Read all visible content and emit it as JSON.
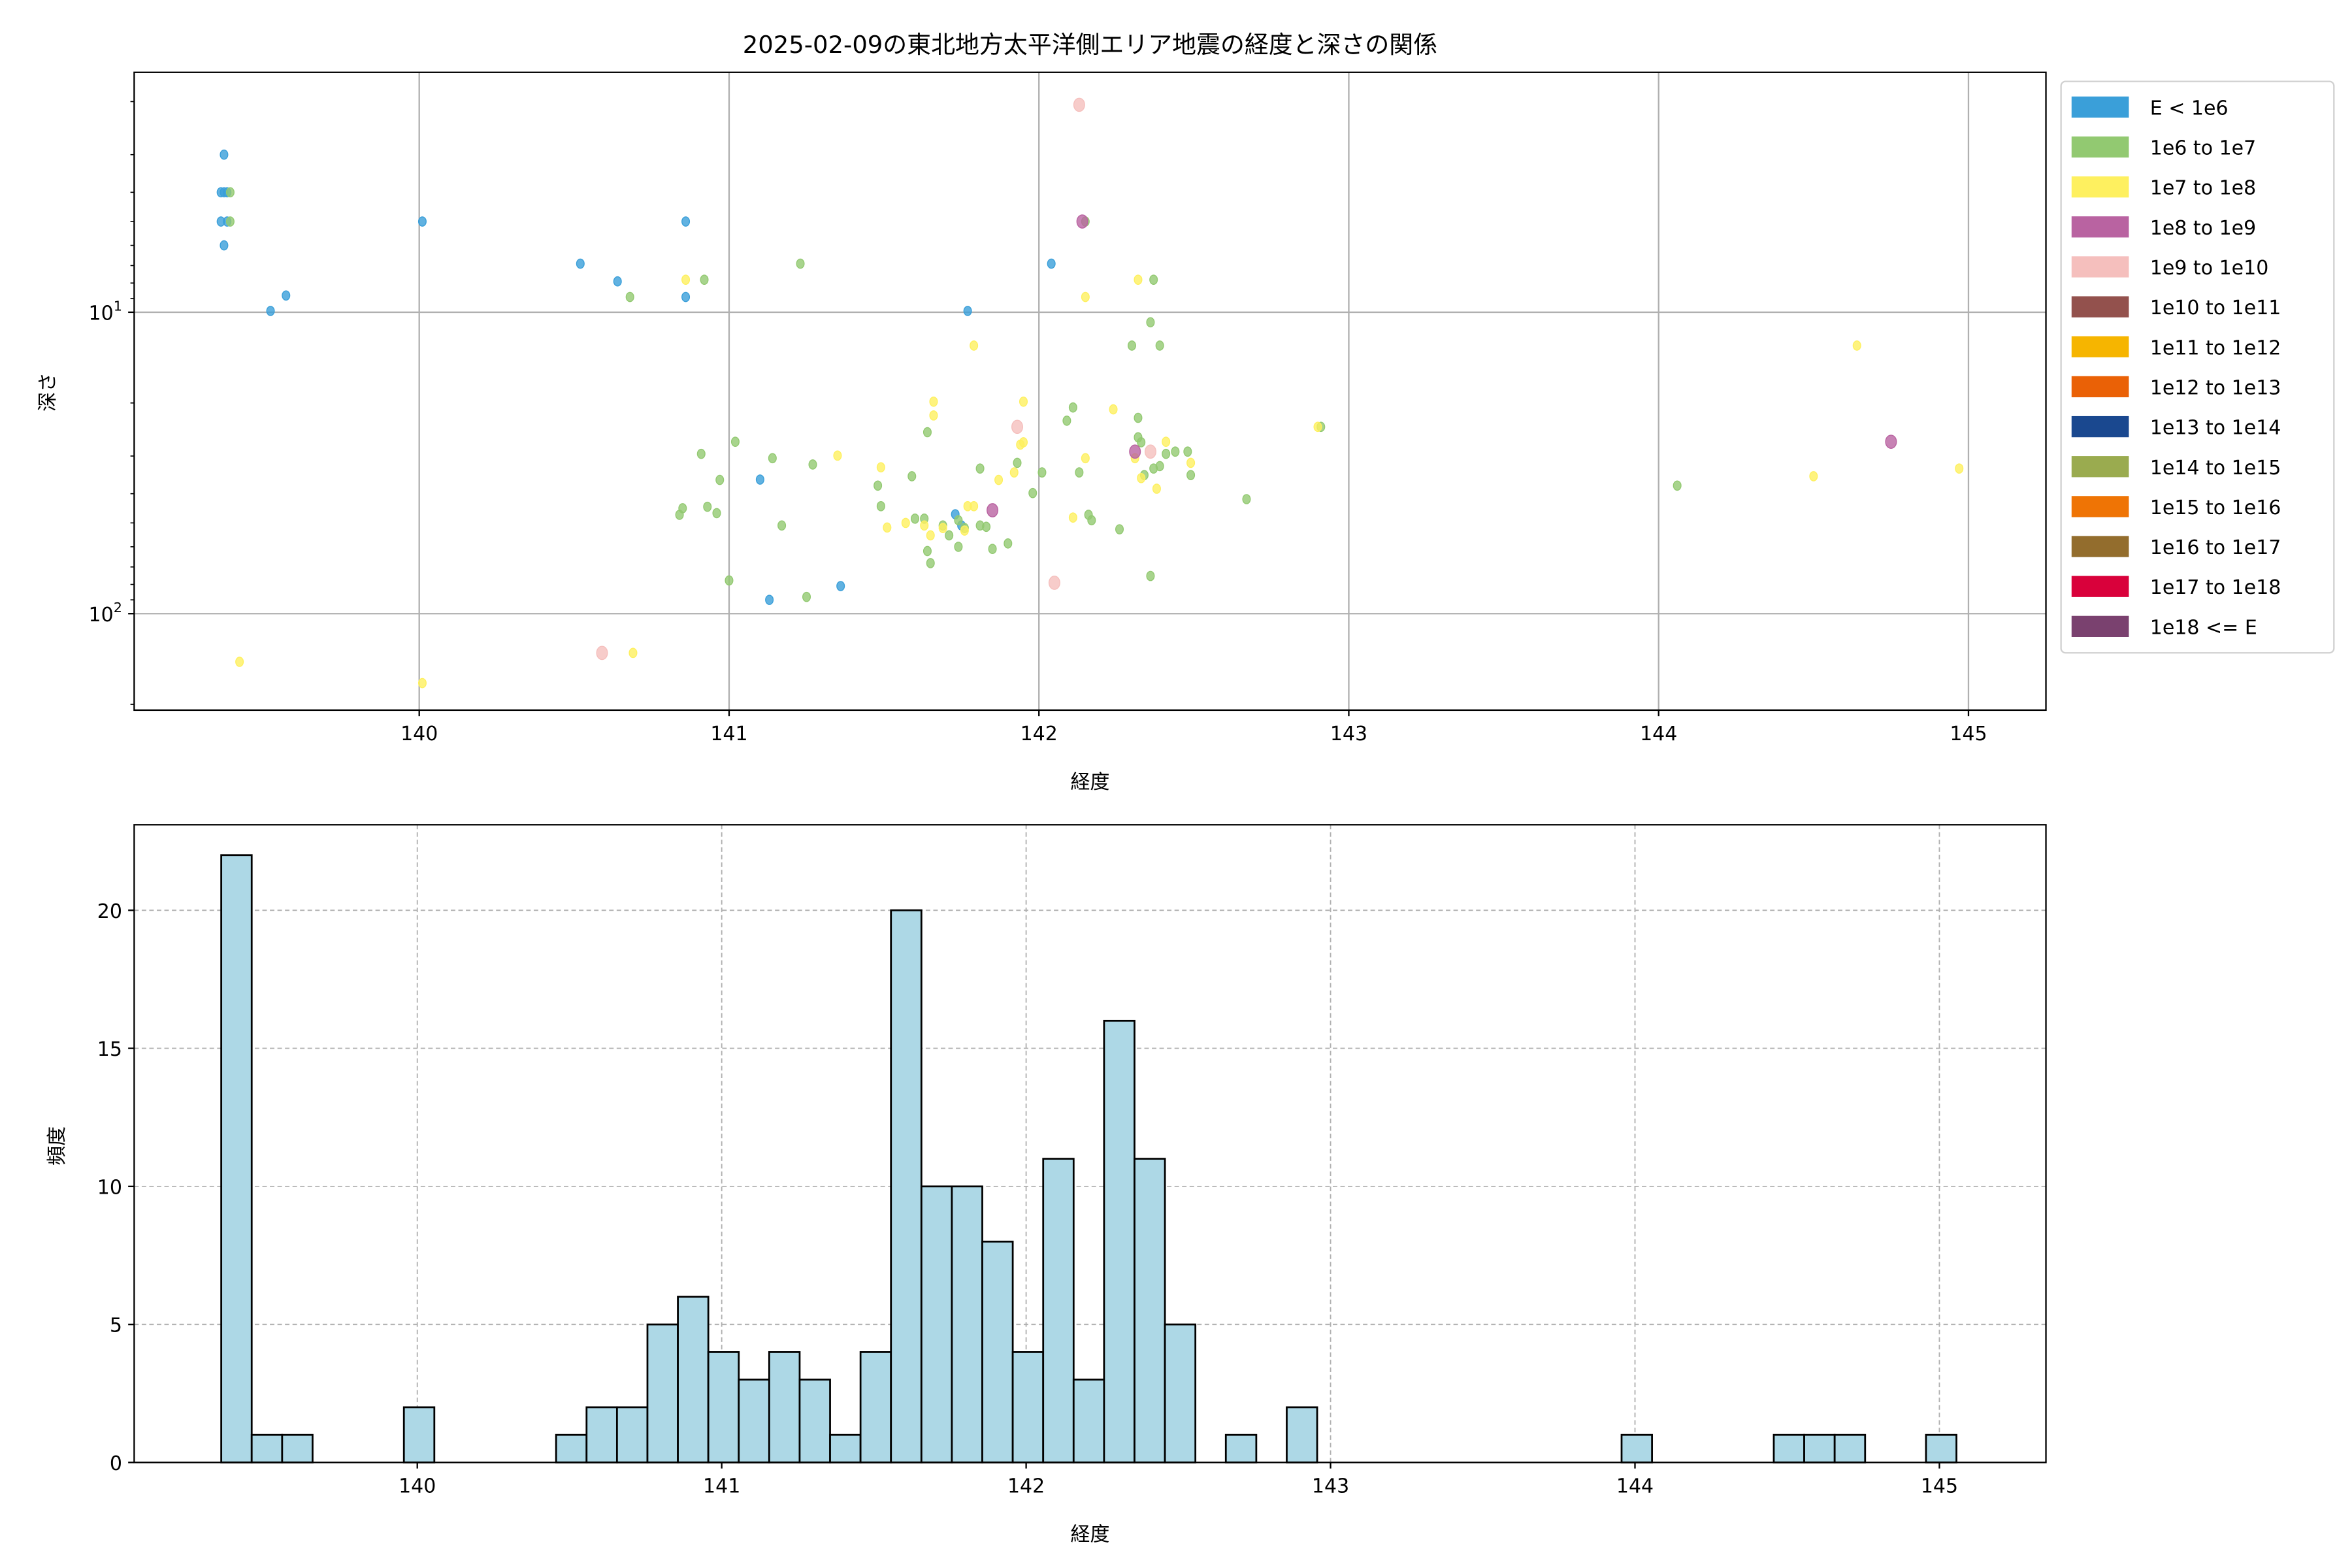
{
  "chart_data": [
    {
      "type": "scatter",
      "title": "2025-02-09の東北地方太平洋側エリア地震の経度と深さの関係",
      "xlabel": "経度",
      "ylabel": "深さ",
      "xlim": [
        139.08,
        145.25
      ],
      "ylim": [
        209,
        1.6
      ],
      "yscale": "log",
      "y_inverted": true,
      "xticks": [
        "140",
        "141",
        "142",
        "143",
        "144",
        "145"
      ],
      "yticks": [
        {
          "value": 10,
          "base": "10",
          "exp": "1"
        },
        {
          "value": 100,
          "base": "10",
          "exp": "2"
        }
      ],
      "grid": true,
      "legend_position": "outside-right",
      "legend": [
        {
          "label": "E < 1e6",
          "color": "#3a9fd9"
        },
        {
          "label": "1e6 to 1e7",
          "color": "#92c971"
        },
        {
          "label": "1e7 to 1e8",
          "color": "#fef05f"
        },
        {
          "label": "1e8 to 1e9",
          "color": "#b963a1"
        },
        {
          "label": "1e9 to 1e10",
          "color": "#f5bfbd"
        },
        {
          "label": "1e10 to 1e11",
          "color": "#93514d"
        },
        {
          "label": "1e11 to 1e12",
          "color": "#f6b500"
        },
        {
          "label": "1e12 to 1e13",
          "color": "#ea6106"
        },
        {
          "label": "1e13 to 1e14",
          "color": "#1a488f"
        },
        {
          "label": "1e14 to 1e15",
          "color": "#9aab4f"
        },
        {
          "label": "1e15 to 1e16",
          "color": "#ef7405"
        },
        {
          "label": "1e16 to 1e17",
          "color": "#936d2d"
        },
        {
          "label": "1e17 to 1e18",
          "color": "#d9013b"
        },
        {
          "label": "1e18 <= E",
          "color": "#7a416f"
        }
      ],
      "points": [
        [
          139.37,
          3.0,
          0
        ],
        [
          139.36,
          4.0,
          0
        ],
        [
          139.37,
          4.0,
          0
        ],
        [
          139.38,
          4.0,
          0
        ],
        [
          139.36,
          5.0,
          0
        ],
        [
          139.38,
          5.0,
          0
        ],
        [
          139.37,
          6.0,
          0
        ],
        [
          139.52,
          9.9,
          0
        ],
        [
          139.57,
          8.8,
          0
        ],
        [
          140.01,
          5.0,
          0
        ],
        [
          140.52,
          6.9,
          0
        ],
        [
          140.64,
          7.9,
          0
        ],
        [
          140.86,
          8.9,
          0
        ],
        [
          140.86,
          5.0,
          0
        ],
        [
          142.04,
          6.9,
          0
        ],
        [
          141.77,
          9.9,
          0
        ],
        [
          141.1,
          35.9,
          0
        ],
        [
          141.73,
          46.8,
          0
        ],
        [
          141.75,
          51,
          0
        ],
        [
          141.13,
          90,
          0
        ],
        [
          141.36,
          81,
          0
        ],
        [
          139.39,
          4.0,
          1
        ],
        [
          139.39,
          5.0,
          1
        ],
        [
          140.68,
          8.9,
          1
        ],
        [
          140.92,
          7.8,
          1
        ],
        [
          141.23,
          6.9,
          1
        ],
        [
          142.15,
          5.0,
          1
        ],
        [
          142.37,
          7.8,
          1
        ],
        [
          142.36,
          10.8,
          1
        ],
        [
          142.3,
          12.9,
          1
        ],
        [
          142.39,
          12.9,
          1
        ],
        [
          142.11,
          20.7,
          1
        ],
        [
          142.09,
          22.9,
          1
        ],
        [
          141.64,
          25,
          1
        ],
        [
          142.32,
          22.4,
          1
        ],
        [
          142.32,
          26,
          1
        ],
        [
          142.33,
          27,
          1
        ],
        [
          140.91,
          29.5,
          1
        ],
        [
          141.02,
          26.9,
          1
        ],
        [
          141.14,
          30.5,
          1
        ],
        [
          140.97,
          36,
          1
        ],
        [
          141.27,
          32,
          1
        ],
        [
          141.48,
          37.6,
          1
        ],
        [
          141.59,
          35,
          1
        ],
        [
          141.81,
          33,
          1
        ],
        [
          142.01,
          34,
          1
        ],
        [
          141.98,
          39.8,
          1
        ],
        [
          142.13,
          34,
          1
        ],
        [
          142.37,
          33,
          1
        ],
        [
          142.41,
          29.5,
          1
        ],
        [
          142.44,
          29,
          1
        ],
        [
          142.48,
          29,
          1
        ],
        [
          142.34,
          34.7,
          1
        ],
        [
          142.39,
          32.4,
          1
        ],
        [
          142.49,
          34.7,
          1
        ],
        [
          142.67,
          41.7,
          1
        ],
        [
          140.85,
          44.7,
          1
        ],
        [
          140.84,
          47,
          1
        ],
        [
          140.93,
          44.2,
          1
        ],
        [
          140.96,
          46.4,
          1
        ],
        [
          141.17,
          51,
          1
        ],
        [
          141.49,
          44,
          1
        ],
        [
          141.6,
          48.4,
          1
        ],
        [
          141.63,
          48.4,
          1
        ],
        [
          141.71,
          55,
          1
        ],
        [
          141.69,
          51,
          1
        ],
        [
          141.74,
          49,
          1
        ],
        [
          141.76,
          52,
          1
        ],
        [
          141.74,
          60,
          1
        ],
        [
          141.81,
          51,
          1
        ],
        [
          141.85,
          61,
          1
        ],
        [
          141.9,
          58.5,
          1
        ],
        [
          141.93,
          31.6,
          1
        ],
        [
          141.64,
          62,
          1
        ],
        [
          141.65,
          68,
          1
        ],
        [
          141.83,
          51.5,
          1
        ],
        [
          142.16,
          47,
          1
        ],
        [
          142.17,
          49,
          1
        ],
        [
          142.26,
          52.5,
          1
        ],
        [
          141.0,
          77.6,
          1
        ],
        [
          141.25,
          88,
          1
        ],
        [
          142.36,
          75,
          1
        ],
        [
          142.91,
          24,
          1
        ],
        [
          144.06,
          37.6,
          1
        ],
        [
          140.86,
          7.8,
          2
        ],
        [
          142.15,
          8.9,
          2
        ],
        [
          142.32,
          7.8,
          2
        ],
        [
          141.79,
          12.9,
          2
        ],
        [
          141.66,
          19.8,
          2
        ],
        [
          141.66,
          22,
          2
        ],
        [
          141.95,
          19.8,
          2
        ],
        [
          142.24,
          21,
          2
        ],
        [
          141.94,
          27.5,
          2
        ],
        [
          141.95,
          27,
          2
        ],
        [
          142.15,
          30.5,
          2
        ],
        [
          141.35,
          29.9,
          2
        ],
        [
          141.49,
          32.7,
          2
        ],
        [
          142.41,
          26.9,
          2
        ],
        [
          142.31,
          30.5,
          2
        ],
        [
          142.33,
          35.5,
          2
        ],
        [
          142.38,
          38.5,
          2
        ],
        [
          142.49,
          31.6,
          2
        ],
        [
          141.87,
          36,
          2
        ],
        [
          141.92,
          34,
          2
        ],
        [
          141.51,
          51.8,
          2
        ],
        [
          141.57,
          50,
          2
        ],
        [
          141.63,
          51,
          2
        ],
        [
          141.69,
          52,
          2
        ],
        [
          141.65,
          55,
          2
        ],
        [
          141.76,
          53,
          2
        ],
        [
          141.79,
          44,
          2
        ],
        [
          141.77,
          44,
          2
        ],
        [
          142.9,
          24,
          2
        ],
        [
          144.5,
          35,
          2
        ],
        [
          144.64,
          12.9,
          2
        ],
        [
          144.97,
          33,
          2
        ],
        [
          142.11,
          48,
          2
        ],
        [
          139.42,
          144.5,
          2
        ],
        [
          140.01,
          170,
          2
        ],
        [
          140.69,
          135,
          2
        ],
        [
          142.14,
          5.0,
          3
        ],
        [
          142.31,
          29,
          3
        ],
        [
          141.85,
          45.4,
          3
        ],
        [
          144.75,
          26.9,
          3
        ],
        [
          142.13,
          2.05,
          4
        ],
        [
          141.93,
          24,
          4
        ],
        [
          142.36,
          29,
          4
        ],
        [
          142.05,
          79,
          4
        ],
        [
          140.59,
          135,
          4
        ]
      ]
    },
    {
      "type": "bar",
      "subtype": "histogram",
      "xlabel": "経度",
      "ylabel": "頻度",
      "xlim": [
        139.07,
        145.35
      ],
      "ylim": [
        0,
        23.1
      ],
      "xticks": [
        "140",
        "141",
        "142",
        "143",
        "144",
        "145"
      ],
      "yticks": [
        "0",
        "5",
        "10",
        "15",
        "20"
      ],
      "grid": true,
      "bar_color": "#add8e6",
      "bin_start": 139.356,
      "bin_width": 0.1,
      "counts": [
        22,
        1,
        1,
        0,
        0,
        0,
        2,
        0,
        0,
        0,
        0,
        1,
        2,
        2,
        5,
        6,
        4,
        3,
        4,
        3,
        1,
        4,
        20,
        10,
        10,
        8,
        4,
        11,
        3,
        16,
        11,
        5,
        0,
        1,
        0,
        2,
        0,
        0,
        0,
        0,
        0,
        0,
        0,
        0,
        0,
        0,
        1,
        0,
        0,
        0,
        0,
        1,
        1,
        1,
        0,
        0,
        1
      ]
    }
  ]
}
